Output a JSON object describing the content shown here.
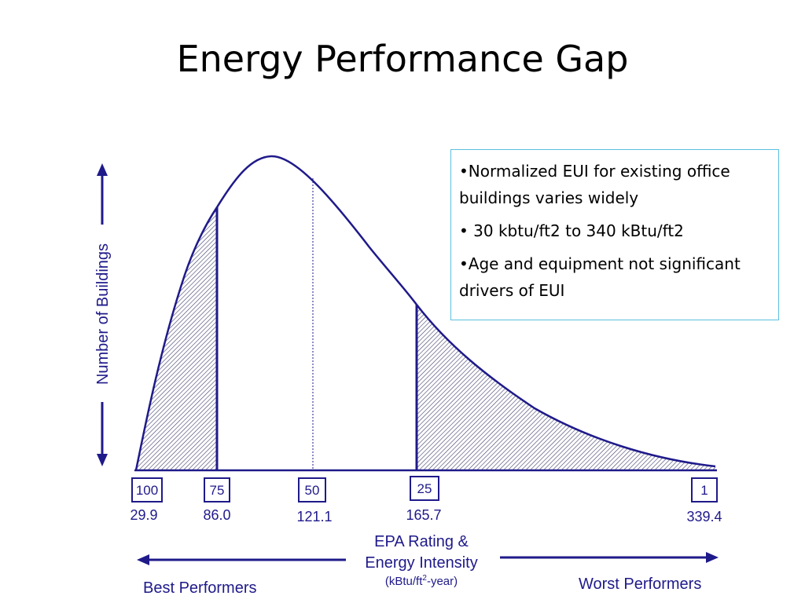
{
  "slide": {
    "title": "Energy Performance Gap"
  },
  "info_box": {
    "bullets": [
      "•Normalized EUI for existing office buildings varies widely",
      "• 30 kbtu/ft2 to 340 kBtu/ft2",
      "•Age and equipment not significant drivers of EUI"
    ]
  },
  "diagram": {
    "y_axis_label": "Number of Buildings",
    "markers": [
      {
        "rating": "100",
        "eui": "29.9"
      },
      {
        "rating": "75",
        "eui": "86.0"
      },
      {
        "rating": "50",
        "eui": "121.1"
      },
      {
        "rating": "25",
        "eui": "165.7"
      },
      {
        "rating": "1",
        "eui": "339.4"
      }
    ],
    "x_axis": {
      "title_line1": "EPA Rating &",
      "title_line2": "Energy Intensity",
      "units_prefix": "(kBtu/ft",
      "units_sup": "2",
      "units_suffix": "-year)"
    },
    "best_label": "Best Performers",
    "worst_label": "Worst Performers",
    "colors": {
      "curve": "#1f1a8a",
      "info_border": "#5bc0de"
    }
  }
}
